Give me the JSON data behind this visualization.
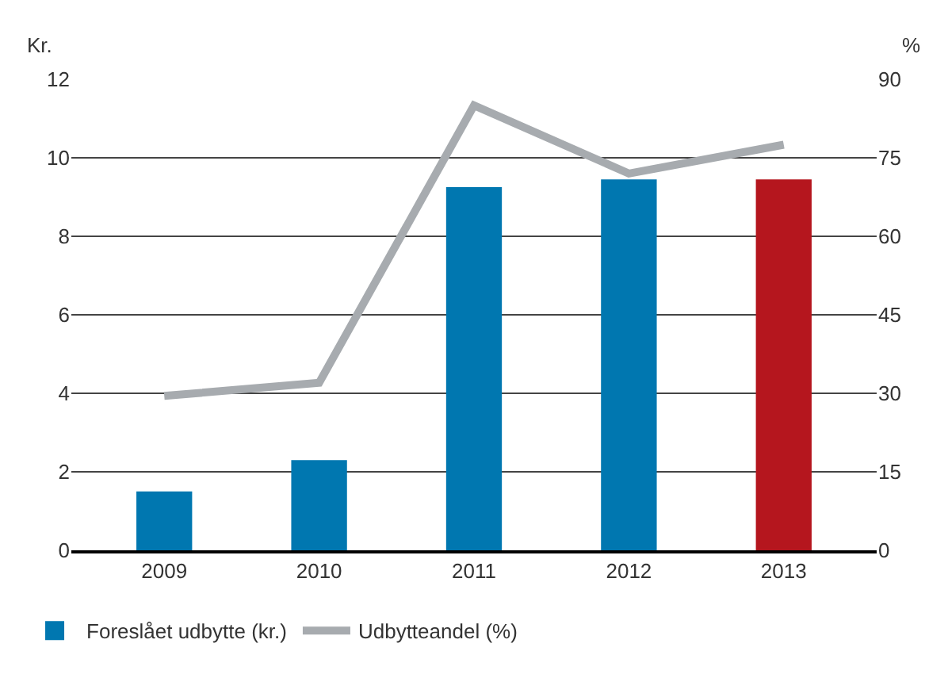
{
  "chart_data": {
    "type": "bar",
    "categories": [
      "2009",
      "2010",
      "2011",
      "2012",
      "2013"
    ],
    "ylabel": "Kr.",
    "y2label": "%",
    "series": [
      {
        "name": "Foreslået udbytte (kr.)",
        "colors": [
          "#0077b0",
          "#0077b0",
          "#0077b0",
          "#0077b0",
          "#b5161e"
        ],
        "values": [
          1.5,
          2.3,
          9.25,
          9.45,
          9.45
        ]
      },
      {
        "name": "Udbytteandel (%)",
        "type": "line",
        "axis": "y2",
        "color": "#a7abaf",
        "values": [
          29.5,
          32,
          85,
          72,
          77.5
        ]
      }
    ],
    "ylim": [
      0,
      12
    ],
    "yticks": [
      0,
      2,
      4,
      6,
      8,
      10,
      12
    ],
    "y2lim": [
      0,
      90
    ],
    "y2ticks": [
      0,
      15,
      30,
      45,
      60,
      75,
      90
    ],
    "grid": "y",
    "legend": "bottom left",
    "marker": "none",
    "line_style": "solid"
  }
}
